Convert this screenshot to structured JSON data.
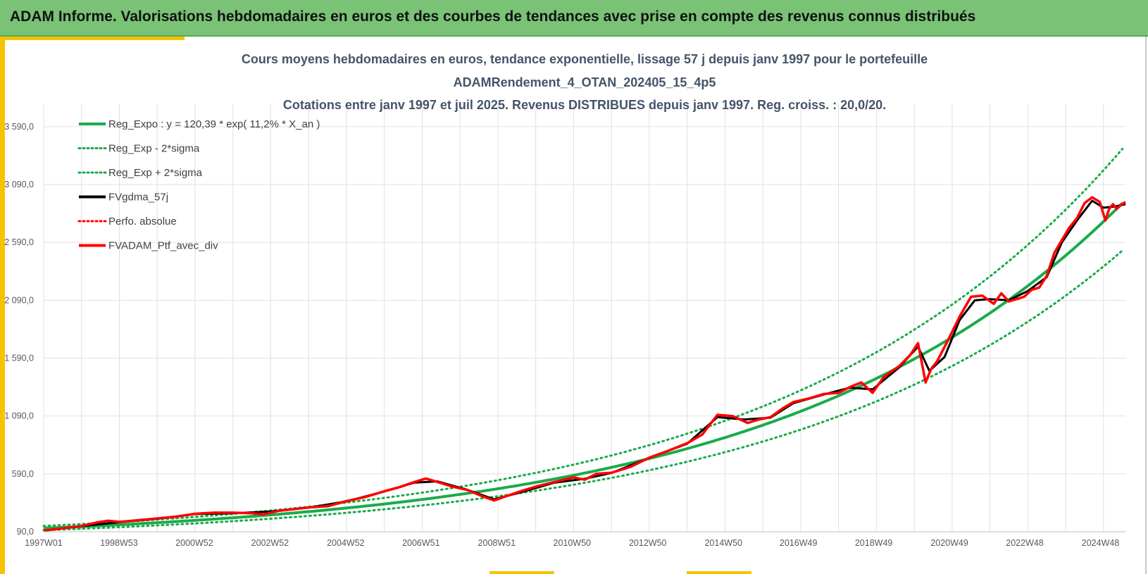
{
  "header": {
    "title": "ADAM Informe. Valorisations hebdomadaires en euros et des courbes de tendances avec prise en compte des revenus connus distribués"
  },
  "colors": {
    "header_bg": "#79c276",
    "accent": "#f5c400",
    "green": "#1aab4a",
    "black": "#000000",
    "red": "#ff0000",
    "title_text": "#44546a",
    "grid": "#e0e0e0"
  },
  "chart_data": {
    "type": "line",
    "title_lines": [
      "Cours moyens hebdomadaires  en euros, tendance exponentielle, lissage 57 j depuis janv 1997 pour le portefeuille",
      "ADAMRendement_4_OTAN_202405_15_4p5",
      "Cotations  entre janv 1997 et juil 2025. Revenus DISTRIBUES depuis janv 1997. Reg. croiss. : 20,0/20."
    ],
    "xlabel": "",
    "ylabel": "",
    "x_range": [
      1997.0,
      2025.58
    ],
    "ylim": [
      90,
      3790
    ],
    "y_ticks": [
      90,
      590,
      1090,
      1590,
      2090,
      2590,
      3090,
      3590
    ],
    "y_tick_labels": [
      "90,0",
      "590,0",
      "1 090,0",
      "1 590,0",
      "2 090,0",
      "2 590,0",
      "3 090,0",
      "3 590,0"
    ],
    "x_ticks": [
      1997.0,
      1998.99,
      2000.98,
      2002.98,
      2004.98,
      2006.97,
      2008.97,
      2010.96,
      2012.96,
      2014.96,
      2016.94,
      2018.93,
      2020.93,
      2022.92,
      2024.92
    ],
    "x_tick_labels": [
      "1997W01",
      "1998W53",
      "2000W52",
      "2002W52",
      "2004W52",
      "2006W51",
      "2008W51",
      "2010W50",
      "2012W50",
      "2014W50",
      "2016W49",
      "2018W49",
      "2020W49",
      "2022W48",
      "2024W48"
    ],
    "grid": true,
    "legend_position": "top-left",
    "legend": [
      {
        "label": "Reg_Expo : y = 120,39 * exp( 11,2% *  X_an )",
        "color": "#1aab4a",
        "style": "solid"
      },
      {
        "label": "Reg_Exp - 2*sigma",
        "color": "#1aab4a",
        "style": "dotted"
      },
      {
        "label": "Reg_Exp + 2*sigma",
        "color": "#1aab4a",
        "style": "dotted"
      },
      {
        "label": "FVgdma_57j",
        "color": "#000000",
        "style": "solid"
      },
      {
        "label": "Perfo. absolue",
        "color": "#ff0000",
        "style": "dotted"
      },
      {
        "label": "FVADAM_Ptf_avec_div",
        "color": "#ff0000",
        "style": "solid"
      }
    ],
    "regression": {
      "a": 120.39,
      "b": 0.112
    },
    "band_factor_low": 0.86,
    "band_factor_high": 1.16,
    "series_portfolio": {
      "name": "FVADAM_Ptf_avec_div",
      "x": [
        1997.0,
        1997.5,
        1998.0,
        1998.4,
        1998.7,
        1999.0,
        1999.5,
        2000.0,
        2000.5,
        2001.0,
        2001.5,
        2002.0,
        2002.5,
        2002.8,
        2003.2,
        2003.6,
        2004.0,
        2004.5,
        2005.0,
        2005.5,
        2006.0,
        2006.4,
        2006.8,
        2007.1,
        2007.4,
        2007.8,
        2008.2,
        2008.6,
        2008.9,
        2009.2,
        2009.6,
        2010.0,
        2010.5,
        2011.0,
        2011.3,
        2011.6,
        2012.0,
        2012.5,
        2013.0,
        2013.5,
        2014.0,
        2014.4,
        2014.8,
        2015.2,
        2015.6,
        2015.9,
        2016.2,
        2016.5,
        2016.8,
        2017.2,
        2017.6,
        2018.0,
        2018.3,
        2018.6,
        2018.9,
        2019.2,
        2019.6,
        2019.9,
        2020.1,
        2020.3,
        2020.45,
        2020.6,
        2020.9,
        2021.2,
        2021.5,
        2021.8,
        2022.1,
        2022.3,
        2022.5,
        2022.7,
        2022.9,
        2023.1,
        2023.3,
        2023.5,
        2023.7,
        2023.9,
        2024.1,
        2024.3,
        2024.5,
        2024.7,
        2024.9,
        2025.05,
        2025.15,
        2025.25,
        2025.35,
        2025.45,
        2025.58
      ],
      "y": [
        100,
        120,
        140,
        170,
        185,
        175,
        190,
        205,
        220,
        245,
        255,
        255,
        250,
        240,
        270,
        285,
        300,
        310,
        355,
        390,
        440,
        475,
        520,
        550,
        520,
        480,
        450,
        395,
        360,
        395,
        440,
        480,
        520,
        560,
        540,
        590,
        600,
        650,
        730,
        790,
        855,
        930,
        1100,
        1090,
        1030,
        1060,
        1080,
        1150,
        1210,
        1240,
        1280,
        1290,
        1340,
        1380,
        1290,
        1430,
        1520,
        1620,
        1720,
        1380,
        1500,
        1560,
        1750,
        1950,
        2120,
        2130,
        2060,
        2150,
        2080,
        2100,
        2120,
        2180,
        2200,
        2300,
        2500,
        2610,
        2720,
        2800,
        2930,
        2980,
        2940,
        2780,
        2880,
        2920,
        2880,
        2910,
        2940
      ]
    },
    "series_smooth": {
      "name": "FVgdma_57j",
      "x": [
        1997.0,
        1998.0,
        1999.0,
        2000.0,
        2001.0,
        2002.0,
        2003.0,
        2004.0,
        2005.0,
        2006.0,
        2006.8,
        2007.4,
        2008.2,
        2008.9,
        2009.6,
        2010.5,
        2011.3,
        2012.0,
        2013.0,
        2014.0,
        2014.8,
        2015.5,
        2016.2,
        2016.8,
        2017.6,
        2018.3,
        2018.9,
        2019.6,
        2020.1,
        2020.4,
        2020.8,
        2021.2,
        2021.6,
        2022.0,
        2022.5,
        2023.0,
        2023.5,
        2023.9,
        2024.3,
        2024.7,
        2025.0,
        2025.3,
        2025.58
      ],
      "y": [
        100,
        138,
        172,
        202,
        243,
        250,
        265,
        298,
        352,
        438,
        515,
        525,
        452,
        370,
        430,
        515,
        548,
        598,
        728,
        850,
        1080,
        1060,
        1075,
        1200,
        1275,
        1335,
        1320,
        1510,
        1690,
        1480,
        1600,
        1920,
        2090,
        2100,
        2090,
        2170,
        2290,
        2590,
        2780,
        2950,
        2890,
        2900,
        2920
      ]
    }
  }
}
